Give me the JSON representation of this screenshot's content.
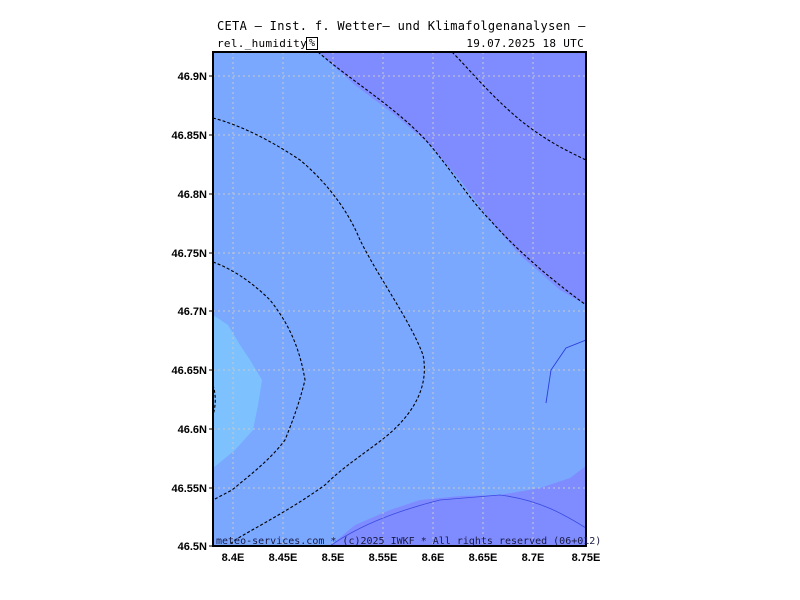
{
  "title": "CETA — Inst. f. Wetter— und Klimafolgenanalysen —",
  "parameter_label": "rel._humidity",
  "unit": "%",
  "valid_time": "19.07.2025 18 UTC",
  "credit": "meteo-services.com * (c)2025 IWKF * All rights reserved (06+012)",
  "lat_ticks": [
    "46.9N",
    "46.85N",
    "46.8N",
    "46.75N",
    "46.7N",
    "46.65N",
    "46.6N",
    "46.55N",
    "46.5N"
  ],
  "lon_ticks": [
    "8.4E",
    "8.45E",
    "8.5E",
    "8.55E",
    "8.6E",
    "8.65E",
    "8.7E",
    "8.75E"
  ],
  "colors": {
    "fill_mid": "#7aa8ff",
    "fill_high": "#7f8cff",
    "fill_low": "#7dc2ff",
    "contour": "#000000",
    "grid": "#c8c8c8"
  }
}
